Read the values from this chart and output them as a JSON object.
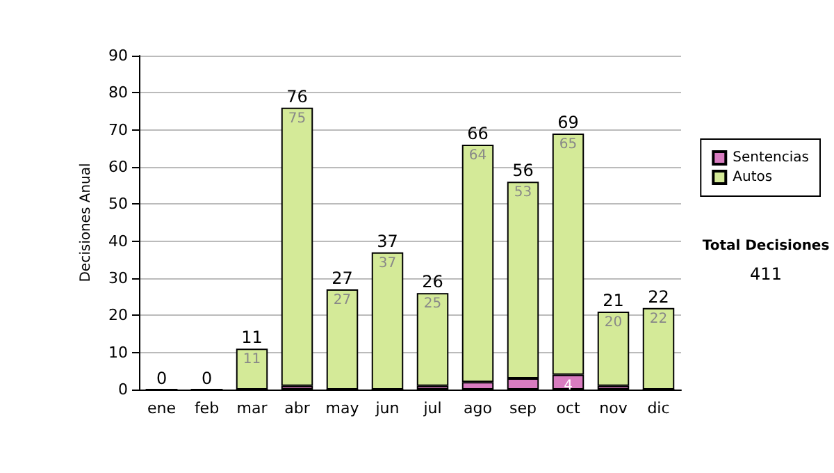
{
  "chart_data": {
    "type": "bar",
    "stacked": true,
    "ylabel": "Decisiones Anual",
    "categories": [
      "ene",
      "feb",
      "mar",
      "abr",
      "may",
      "jun",
      "jul",
      "ago",
      "sep",
      "oct",
      "nov",
      "dic"
    ],
    "series": [
      {
        "name": "Sentencias",
        "color": "#d87cc0",
        "values": [
          0,
          0,
          0,
          1,
          0,
          0,
          1,
          2,
          3,
          4,
          1,
          0
        ],
        "value_labels": [
          null,
          null,
          null,
          null,
          null,
          null,
          null,
          null,
          null,
          "4",
          null,
          null
        ]
      },
      {
        "name": "Autos",
        "color": "#d4ea98",
        "values": [
          0,
          0,
          11,
          75,
          27,
          37,
          25,
          64,
          53,
          65,
          20,
          22
        ],
        "value_labels": [
          null,
          null,
          "11",
          "75",
          "27",
          "37",
          "25",
          "64",
          "53",
          "65",
          "20",
          "22"
        ]
      }
    ],
    "totals": [
      "0",
      "0",
      "11",
      "76",
      "27",
      "37",
      "26",
      "66",
      "56",
      "69",
      "21",
      "22"
    ],
    "ylim": [
      0,
      90
    ],
    "yticks": [
      0,
      10,
      20,
      30,
      40,
      50,
      60,
      70,
      80,
      90
    ],
    "grid": "y",
    "legend": "right",
    "annotations": [
      "Total Decisiones",
      "411"
    ]
  }
}
